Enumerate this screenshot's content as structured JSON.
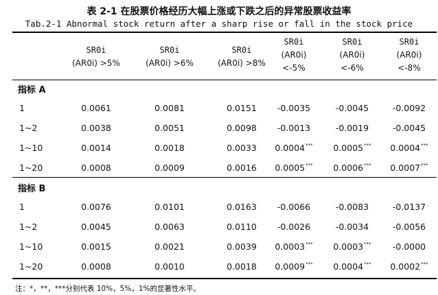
{
  "title_cn": "表 2-1   在股票价格经历大幅上涨或下跌之后的异常股票收益率",
  "title_en": "Tab.2-1 Abnormal stock return after a sharp rise or fall in the stock price",
  "columns": [
    {
      "l1": "SR0i",
      "l2": "(AR0i) >5%",
      "l3": ""
    },
    {
      "l1": "SR0i",
      "l2": "(AR0i) >6%",
      "l3": ""
    },
    {
      "l1": "SR0i",
      "l2": "(AR0i) >8%",
      "l3": ""
    },
    {
      "l1": "SR0i",
      "l2": "(AR0i)",
      "l3": "<-5%"
    },
    {
      "l1": "SR0i",
      "l2": "(AR0i)",
      "l3": "<-6%"
    },
    {
      "l1": "SR0i",
      "l2": "(AR0i)",
      "l3": "<-8%"
    }
  ],
  "sections": [
    {
      "label": "指标 A",
      "rows": [
        {
          "label": "1",
          "cells": [
            {
              "v": "0.0061",
              "s": ""
            },
            {
              "v": "0.0081",
              "s": ""
            },
            {
              "v": "0.0151",
              "s": ""
            },
            {
              "v": "-0.0035",
              "s": ""
            },
            {
              "v": "-0.0045",
              "s": ""
            },
            {
              "v": "-0.0092",
              "s": ""
            }
          ]
        },
        {
          "label": "1~2",
          "cells": [
            {
              "v": "0.0038",
              "s": ""
            },
            {
              "v": "0.0051",
              "s": ""
            },
            {
              "v": "0.0098",
              "s": ""
            },
            {
              "v": "-0.0013",
              "s": ""
            },
            {
              "v": "-0.0019",
              "s": ""
            },
            {
              "v": "-0.0045",
              "s": ""
            }
          ]
        },
        {
          "label": "1~10",
          "cells": [
            {
              "v": "0.0014",
              "s": ""
            },
            {
              "v": "0.0018",
              "s": ""
            },
            {
              "v": "0.0033",
              "s": ""
            },
            {
              "v": "0.0004",
              "s": "***"
            },
            {
              "v": "0.0005",
              "s": "***"
            },
            {
              "v": "0.0004",
              "s": "***"
            }
          ]
        },
        {
          "label": "1~20",
          "cells": [
            {
              "v": "0.0008",
              "s": ""
            },
            {
              "v": "0.0009",
              "s": ""
            },
            {
              "v": "0.0016",
              "s": ""
            },
            {
              "v": "0.0005",
              "s": "***"
            },
            {
              "v": "0.0006",
              "s": "***"
            },
            {
              "v": "0.0007",
              "s": "***"
            }
          ]
        }
      ]
    },
    {
      "label": "指标 B",
      "rows": [
        {
          "label": "1",
          "cells": [
            {
              "v": "0.0076",
              "s": ""
            },
            {
              "v": "0.0101",
              "s": ""
            },
            {
              "v": "0.0163",
              "s": ""
            },
            {
              "v": "-0.0066",
              "s": ""
            },
            {
              "v": "-0.0083",
              "s": ""
            },
            {
              "v": "-0.0137",
              "s": ""
            }
          ]
        },
        {
          "label": "1~2",
          "cells": [
            {
              "v": "0.0045",
              "s": ""
            },
            {
              "v": "0.0063",
              "s": ""
            },
            {
              "v": "0.0110",
              "s": ""
            },
            {
              "v": "-0.0026",
              "s": ""
            },
            {
              "v": "-0.0034",
              "s": ""
            },
            {
              "v": "-0.0056",
              "s": ""
            }
          ]
        },
        {
          "label": "1~10",
          "cells": [
            {
              "v": "0.0015",
              "s": ""
            },
            {
              "v": "0.0021",
              "s": ""
            },
            {
              "v": "0.0039",
              "s": ""
            },
            {
              "v": "0.0003",
              "s": "***"
            },
            {
              "v": "0.0003",
              "s": "***"
            },
            {
              "v": "-0.0000",
              "s": ""
            }
          ]
        },
        {
          "label": "1~20",
          "cells": [
            {
              "v": "0.0008",
              "s": ""
            },
            {
              "v": "0.0010",
              "s": ""
            },
            {
              "v": "0.0018",
              "s": ""
            },
            {
              "v": "0.0009",
              "s": "***"
            },
            {
              "v": "0.0004",
              "s": "***"
            },
            {
              "v": "0.0002",
              "s": "***"
            }
          ]
        }
      ]
    }
  ],
  "footnote": "注：*，**，***分别代表 10%，5%，1%的显著性水平。"
}
